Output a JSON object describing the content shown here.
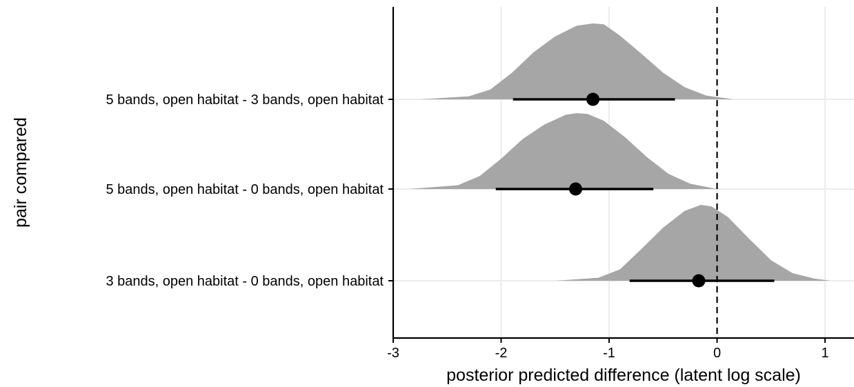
{
  "chart_data": {
    "type": "halfeye",
    "title": "",
    "xlabel": "posterior predicted difference (latent log scale)",
    "ylabel": "pair compared",
    "xlim": [
      -3.02,
      1.27
    ],
    "xticks": [
      -3,
      -2,
      -1,
      0,
      1
    ],
    "xtick_labels": [
      "-3",
      "-2",
      "-1",
      "0",
      "1"
    ],
    "reference_line": {
      "x": 0,
      "style": "dashed"
    },
    "grid": "major, light grey",
    "density_color": "#a6a6a6",
    "interval_color": "#000000",
    "rows": [
      {
        "label": "5 bands, open habitat - 3 bands, open habitat",
        "point": -1.15,
        "lower": -1.89,
        "upper": -0.39,
        "density": [
          [
            -2.75,
            0
          ],
          [
            -2.3,
            0.04
          ],
          [
            -2.1,
            0.13
          ],
          [
            -1.9,
            0.35
          ],
          [
            -1.7,
            0.62
          ],
          [
            -1.5,
            0.83
          ],
          [
            -1.3,
            0.97
          ],
          [
            -1.15,
            1.0
          ],
          [
            -1.05,
            0.99
          ],
          [
            -0.9,
            0.84
          ],
          [
            -0.7,
            0.6
          ],
          [
            -0.5,
            0.35
          ],
          [
            -0.3,
            0.16
          ],
          [
            -0.1,
            0.05
          ],
          [
            0.15,
            0
          ]
        ]
      },
      {
        "label": "5 bands, open habitat - 0 bands, open habitat",
        "point": -1.31,
        "lower": -2.05,
        "upper": -0.59,
        "density": [
          [
            -2.85,
            0
          ],
          [
            -2.4,
            0.05
          ],
          [
            -2.2,
            0.17
          ],
          [
            -2.0,
            0.4
          ],
          [
            -1.8,
            0.66
          ],
          [
            -1.6,
            0.85
          ],
          [
            -1.4,
            0.98
          ],
          [
            -1.3,
            1.0
          ],
          [
            -1.2,
            0.99
          ],
          [
            -1.05,
            0.9
          ],
          [
            -0.85,
            0.68
          ],
          [
            -0.65,
            0.42
          ],
          [
            -0.45,
            0.2
          ],
          [
            -0.25,
            0.07
          ],
          [
            0.0,
            0
          ]
        ]
      },
      {
        "label": "3 bands, open habitat - 0 bands, open habitat",
        "point": -0.17,
        "lower": -0.81,
        "upper": 0.53,
        "density": [
          [
            -1.5,
            0
          ],
          [
            -1.1,
            0.04
          ],
          [
            -0.9,
            0.15
          ],
          [
            -0.7,
            0.42
          ],
          [
            -0.5,
            0.7
          ],
          [
            -0.3,
            0.92
          ],
          [
            -0.15,
            1.0
          ],
          [
            -0.05,
            0.98
          ],
          [
            0.1,
            0.84
          ],
          [
            0.3,
            0.55
          ],
          [
            0.5,
            0.27
          ],
          [
            0.7,
            0.1
          ],
          [
            0.9,
            0.03
          ],
          [
            1.05,
            0
          ]
        ]
      }
    ]
  }
}
